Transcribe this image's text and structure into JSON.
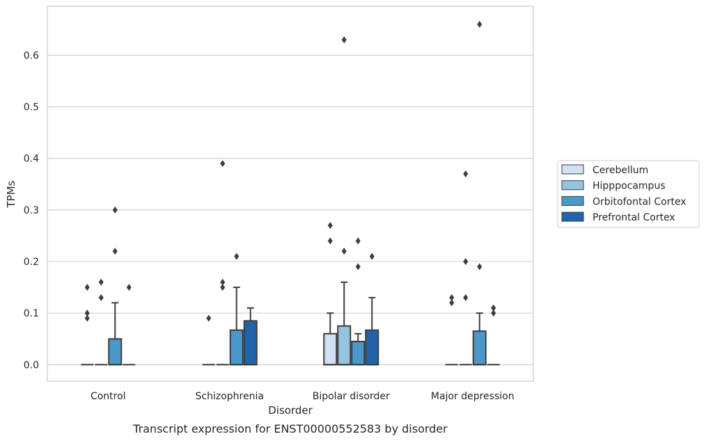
{
  "chart_data": {
    "type": "box",
    "title": "",
    "caption": "Transcript expression for ENST00000552583 by disorder",
    "xlabel": "Disorder",
    "ylabel": "TPMs",
    "ylim": [
      -0.032,
      0.695
    ],
    "yticks": [
      0.0,
      0.1,
      0.2,
      0.3,
      0.4,
      0.5,
      0.6
    ],
    "ytick_labels": [
      "0.0",
      "0.1",
      "0.2",
      "0.3",
      "0.4",
      "0.5",
      "0.6"
    ],
    "grid": "horizontal",
    "legend_position": "right",
    "categories": [
      "Control",
      "Schizophrenia",
      "Bipolar disorder",
      "Major depression"
    ],
    "series": [
      {
        "name": "Cerebellum",
        "color": "#d0e1f2",
        "boxes": [
          {
            "q1": 0,
            "median": 0,
            "q3": 0,
            "whisker_low": 0,
            "whisker_high": 0,
            "outliers": [
              0.09,
              0.1,
              0.15
            ]
          },
          {
            "q1": 0,
            "median": 0,
            "q3": 0,
            "whisker_low": 0,
            "whisker_high": 0,
            "outliers": [
              0.09
            ]
          },
          {
            "q1": 0,
            "median": 0,
            "q3": 0.06,
            "whisker_low": 0,
            "whisker_high": 0.1,
            "outliers": [
              0.24,
              0.27
            ]
          },
          {
            "q1": 0,
            "median": 0,
            "q3": 0,
            "whisker_low": 0,
            "whisker_high": 0,
            "outliers": [
              0.12,
              0.13
            ]
          }
        ]
      },
      {
        "name": "Hipppocampus",
        "color": "#94c4df",
        "boxes": [
          {
            "q1": 0,
            "median": 0,
            "q3": 0,
            "whisker_low": 0,
            "whisker_high": 0,
            "outliers": [
              0.13,
              0.16
            ]
          },
          {
            "q1": 0,
            "median": 0,
            "q3": 0,
            "whisker_low": 0,
            "whisker_high": 0,
            "outliers": [
              0.15,
              0.16,
              0.39
            ]
          },
          {
            "q1": 0,
            "median": 0,
            "q3": 0.075,
            "whisker_low": 0,
            "whisker_high": 0.16,
            "outliers": [
              0.22,
              0.63
            ]
          },
          {
            "q1": 0,
            "median": 0,
            "q3": 0,
            "whisker_low": 0,
            "whisker_high": 0,
            "outliers": [
              0.13,
              0.2,
              0.37
            ]
          }
        ]
      },
      {
        "name": "Orbitofontal Cortex",
        "color": "#4a98c9",
        "boxes": [
          {
            "q1": 0,
            "median": 0,
            "q3": 0.05,
            "whisker_low": 0,
            "whisker_high": 0.12,
            "outliers": [
              0.22,
              0.3
            ]
          },
          {
            "q1": 0,
            "median": 0,
            "q3": 0.067,
            "whisker_low": 0,
            "whisker_high": 0.15,
            "outliers": [
              0.21
            ]
          },
          {
            "q1": 0,
            "median": 0,
            "q3": 0.045,
            "whisker_low": 0,
            "whisker_high": 0.06,
            "outliers": [
              0.19,
              0.24
            ]
          },
          {
            "q1": 0,
            "median": 0,
            "q3": 0.065,
            "whisker_low": 0,
            "whisker_high": 0.1,
            "outliers": [
              0.19,
              0.66
            ]
          }
        ]
      },
      {
        "name": "Prefrontal Cortex",
        "color": "#2163aa",
        "boxes": [
          {
            "q1": 0,
            "median": 0,
            "q3": 0,
            "whisker_low": 0,
            "whisker_high": 0,
            "outliers": [
              0.15
            ]
          },
          {
            "q1": 0,
            "median": 0,
            "q3": 0.085,
            "whisker_low": 0,
            "whisker_high": 0.11,
            "outliers": []
          },
          {
            "q1": 0,
            "median": 0,
            "q3": 0.067,
            "whisker_low": 0,
            "whisker_high": 0.13,
            "outliers": [
              0.21
            ]
          },
          {
            "q1": 0,
            "median": 0,
            "q3": 0,
            "whisker_low": 0,
            "whisker_high": 0,
            "outliers": [
              0.1,
              0.11
            ]
          }
        ]
      }
    ]
  }
}
